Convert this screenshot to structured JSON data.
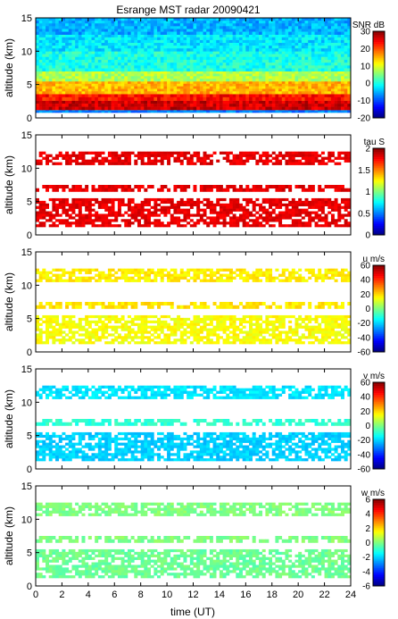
{
  "chart_data": {
    "title": "Esrange MST radar 20090421",
    "type": "heatmap",
    "xlabel": "time (UT)",
    "xlim": [
      0,
      24
    ],
    "x_ticks": [
      0,
      2,
      4,
      6,
      8,
      10,
      12,
      14,
      16,
      18,
      20,
      22,
      24
    ],
    "panels": [
      {
        "ylabel": "altitude (km)",
        "ylim": [
          0,
          15
        ],
        "y_ticks": [
          0,
          5,
          10,
          15
        ],
        "colorbar_label": "SNR dB",
        "clim": [
          -20,
          30
        ],
        "colorbar_ticks": [
          30,
          20,
          10,
          0,
          -10,
          -20
        ],
        "fill": "full",
        "layers": [
          {
            "from_km": 0.8,
            "to_km": 1.2,
            "level": 0.25
          },
          {
            "from_km": 1.2,
            "to_km": 2.6,
            "level": 0.92
          },
          {
            "from_km": 2.6,
            "to_km": 3.6,
            "level": 0.86
          },
          {
            "from_km": 3.6,
            "to_km": 5.5,
            "level": 0.7
          },
          {
            "from_km": 5.5,
            "to_km": 7.0,
            "level": 0.55
          },
          {
            "from_km": 7.0,
            "to_km": 10.0,
            "level": 0.4
          },
          {
            "from_km": 10.0,
            "to_km": 12.5,
            "level": 0.35
          },
          {
            "from_km": 12.5,
            "to_km": 15.0,
            "level": 0.3
          }
        ]
      },
      {
        "ylabel": "altitude (km)",
        "ylim": [
          0,
          15
        ],
        "y_ticks": [
          0,
          5,
          10,
          15
        ],
        "colorbar_label": "tau S",
        "clim": [
          0,
          2
        ],
        "colorbar_ticks": [
          2,
          1.5,
          1,
          0.5,
          0
        ],
        "fill": "sparse",
        "layers": [
          {
            "from_km": 1.2,
            "to_km": 5.5,
            "level": 0.9
          },
          {
            "from_km": 6.5,
            "to_km": 7.5,
            "level": 0.9
          },
          {
            "from_km": 10.5,
            "to_km": 12.5,
            "level": 0.9
          }
        ]
      },
      {
        "ylabel": "altitude (km)",
        "ylim": [
          0,
          15
        ],
        "y_ticks": [
          0,
          5,
          10,
          15
        ],
        "colorbar_label": "u m/s",
        "clim": [
          -60,
          60
        ],
        "colorbar_ticks": [
          60,
          40,
          20,
          0,
          -20,
          -40,
          -60
        ],
        "fill": "sparse",
        "layers": [
          {
            "from_km": 1.2,
            "to_km": 5.5,
            "level": 0.62
          },
          {
            "from_km": 6.5,
            "to_km": 7.5,
            "level": 0.65
          },
          {
            "from_km": 10.5,
            "to_km": 12.5,
            "level": 0.64
          }
        ]
      },
      {
        "ylabel": "altitude (km)",
        "ylim": [
          0,
          15
        ],
        "y_ticks": [
          0,
          5,
          10,
          15
        ],
        "colorbar_label": "v m/s",
        "clim": [
          -60,
          60
        ],
        "colorbar_ticks": [
          60,
          40,
          20,
          0,
          -20,
          -40,
          -60
        ],
        "fill": "sparse",
        "layers": [
          {
            "from_km": 1.2,
            "to_km": 5.5,
            "level": 0.33
          },
          {
            "from_km": 6.5,
            "to_km": 7.5,
            "level": 0.42
          },
          {
            "from_km": 10.5,
            "to_km": 12.5,
            "level": 0.35
          }
        ]
      },
      {
        "ylabel": "altitude (km)",
        "ylim": [
          0,
          15
        ],
        "y_ticks": [
          0,
          5,
          10,
          15
        ],
        "colorbar_label": "w m/s",
        "clim": [
          -6,
          6
        ],
        "colorbar_ticks": [
          6,
          4,
          2,
          0,
          -2,
          -4,
          -6
        ],
        "fill": "sparse",
        "layers": [
          {
            "from_km": 1.2,
            "to_km": 5.5,
            "level": 0.48
          },
          {
            "from_km": 6.5,
            "to_km": 7.5,
            "level": 0.5
          },
          {
            "from_km": 10.5,
            "to_km": 12.5,
            "level": 0.5
          }
        ]
      }
    ]
  }
}
